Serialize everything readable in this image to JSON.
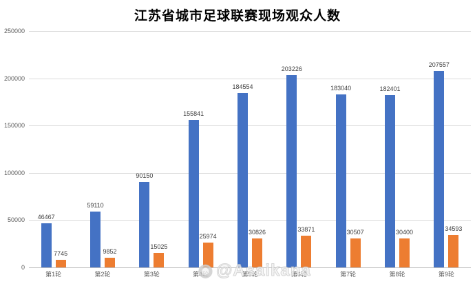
{
  "chart_data": {
    "type": "bar",
    "title": "江苏省城市足球联赛现场观众人数",
    "categories": [
      "第1轮",
      "第2轮",
      "第3轮",
      "第4轮",
      "第5轮",
      "第6轮",
      "第7轮",
      "第8轮",
      "第9轮"
    ],
    "series": [
      {
        "name": "blue-series",
        "color": "#4472C4",
        "values": [
          46467,
          59110,
          90150,
          155841,
          184554,
          203226,
          183040,
          182401,
          207557
        ]
      },
      {
        "name": "orange-series",
        "color": "#ED7D31",
        "values": [
          7745,
          9852,
          15025,
          25974,
          30826,
          33871,
          30507,
          30400,
          34593
        ]
      }
    ],
    "ylim": [
      0,
      250000
    ],
    "yticks": [
      0,
      50000,
      100000,
      150000,
      200000,
      250000
    ],
    "grid": true,
    "legend": "none",
    "xlabel": "",
    "ylabel": ""
  },
  "watermark": {
    "logo": "◉",
    "text": "@Asaikana"
  }
}
